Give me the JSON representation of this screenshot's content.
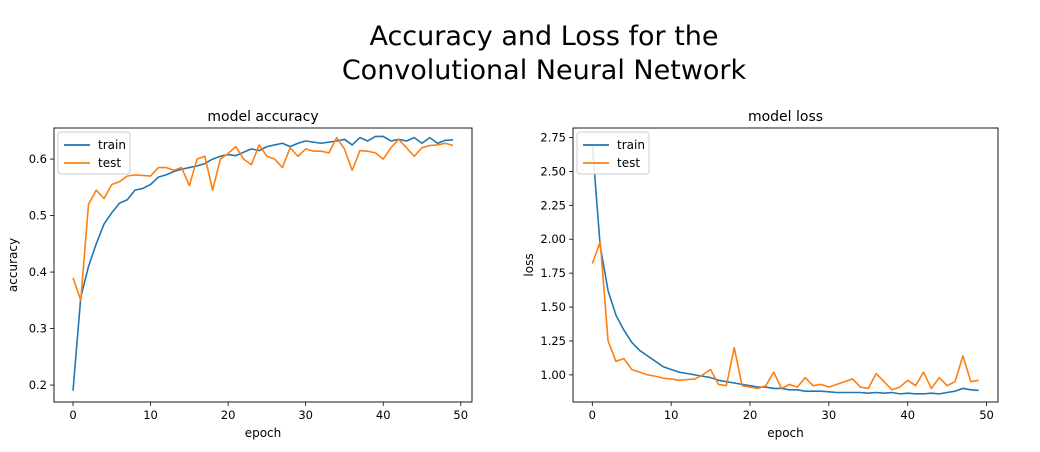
{
  "figure": {
    "title_line1": "Accuracy and Loss for the",
    "title_line2": "Convolutional Neural Network"
  },
  "colors": {
    "train": "#1f77b4",
    "test": "#ff7f0e"
  },
  "chart_data": [
    {
      "type": "line",
      "title": "model accuracy",
      "xlabel": "epoch",
      "ylabel": "accuracy",
      "xlim": [
        -2.45,
        51.45
      ],
      "ylim": [
        0.17,
        0.655
      ],
      "xticks": [
        0,
        10,
        20,
        30,
        40,
        50
      ],
      "yticks": [
        0.2,
        0.3,
        0.4,
        0.5,
        0.6
      ],
      "ytick_labels": [
        "0.2",
        "0.3",
        "0.4",
        "0.5",
        "0.6"
      ],
      "legend": "upper-left",
      "x": [
        0,
        1,
        2,
        3,
        4,
        5,
        6,
        7,
        8,
        9,
        10,
        11,
        12,
        13,
        14,
        15,
        16,
        17,
        18,
        19,
        20,
        21,
        22,
        23,
        24,
        25,
        26,
        27,
        28,
        29,
        30,
        31,
        32,
        33,
        34,
        35,
        36,
        37,
        38,
        39,
        40,
        41,
        42,
        43,
        44,
        45,
        46,
        47,
        48,
        49
      ],
      "series": [
        {
          "name": "train",
          "values": [
            0.19,
            0.355,
            0.41,
            0.45,
            0.485,
            0.505,
            0.522,
            0.528,
            0.545,
            0.548,
            0.555,
            0.568,
            0.572,
            0.578,
            0.582,
            0.585,
            0.588,
            0.592,
            0.6,
            0.605,
            0.608,
            0.606,
            0.612,
            0.618,
            0.615,
            0.622,
            0.625,
            0.628,
            0.622,
            0.628,
            0.632,
            0.63,
            0.628,
            0.63,
            0.632,
            0.635,
            0.625,
            0.638,
            0.632,
            0.64,
            0.64,
            0.632,
            0.635,
            0.632,
            0.638,
            0.628,
            0.638,
            0.628,
            0.633,
            0.634
          ]
        },
        {
          "name": "test",
          "values": [
            0.39,
            0.35,
            0.52,
            0.545,
            0.53,
            0.555,
            0.56,
            0.57,
            0.572,
            0.571,
            0.57,
            0.585,
            0.585,
            0.58,
            0.585,
            0.553,
            0.6,
            0.605,
            0.545,
            0.6,
            0.61,
            0.622,
            0.6,
            0.59,
            0.625,
            0.605,
            0.6,
            0.585,
            0.62,
            0.605,
            0.618,
            0.614,
            0.614,
            0.611,
            0.638,
            0.618,
            0.58,
            0.615,
            0.614,
            0.611,
            0.6,
            0.62,
            0.635,
            0.62,
            0.605,
            0.62,
            0.624,
            0.625,
            0.628,
            0.624
          ]
        }
      ]
    },
    {
      "type": "line",
      "title": "model loss",
      "xlabel": "epoch",
      "ylabel": "loss",
      "xlim": [
        -2.45,
        51.45
      ],
      "ylim": [
        0.8,
        2.82
      ],
      "xticks": [
        0,
        10,
        20,
        30,
        40,
        50
      ],
      "yticks": [
        1.0,
        1.25,
        1.5,
        1.75,
        2.0,
        2.25,
        2.5,
        2.75
      ],
      "ytick_labels": [
        "1.00",
        "1.25",
        "1.50",
        "1.75",
        "2.00",
        "2.25",
        "2.50",
        "2.75"
      ],
      "legend": "upper-left",
      "x": [
        0,
        1,
        2,
        3,
        4,
        5,
        6,
        7,
        8,
        9,
        10,
        11,
        12,
        13,
        14,
        15,
        16,
        17,
        18,
        19,
        20,
        21,
        22,
        23,
        24,
        25,
        26,
        27,
        28,
        29,
        30,
        31,
        32,
        33,
        34,
        35,
        36,
        37,
        38,
        39,
        40,
        41,
        42,
        43,
        44,
        45,
        46,
        47,
        48,
        49
      ],
      "series": [
        {
          "name": "train",
          "values": [
            2.7,
            1.95,
            1.62,
            1.44,
            1.33,
            1.24,
            1.18,
            1.14,
            1.1,
            1.06,
            1.04,
            1.02,
            1.01,
            1.0,
            0.99,
            0.98,
            0.96,
            0.95,
            0.94,
            0.93,
            0.92,
            0.91,
            0.91,
            0.9,
            0.9,
            0.89,
            0.89,
            0.88,
            0.88,
            0.88,
            0.875,
            0.87,
            0.87,
            0.87,
            0.87,
            0.865,
            0.87,
            0.865,
            0.87,
            0.86,
            0.865,
            0.86,
            0.86,
            0.865,
            0.86,
            0.87,
            0.88,
            0.9,
            0.89,
            0.885
          ]
        },
        {
          "name": "test",
          "values": [
            1.82,
            1.98,
            1.25,
            1.1,
            1.12,
            1.04,
            1.02,
            1.0,
            0.99,
            0.975,
            0.97,
            0.96,
            0.965,
            0.97,
            1.0,
            1.04,
            0.93,
            0.92,
            1.2,
            0.92,
            0.91,
            0.9,
            0.92,
            1.02,
            0.9,
            0.93,
            0.91,
            0.98,
            0.92,
            0.93,
            0.91,
            0.93,
            0.95,
            0.97,
            0.91,
            0.9,
            1.01,
            0.95,
            0.89,
            0.91,
            0.96,
            0.92,
            1.02,
            0.9,
            0.98,
            0.92,
            0.95,
            1.14,
            0.95,
            0.96
          ]
        }
      ]
    }
  ]
}
